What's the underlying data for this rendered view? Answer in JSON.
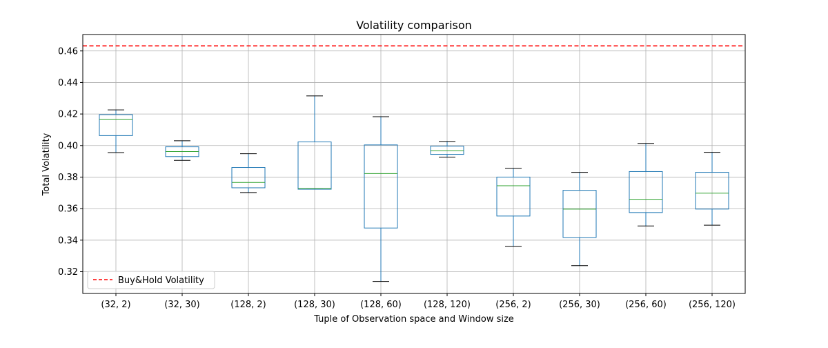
{
  "chart_data": {
    "type": "box",
    "title": "Volatility comparison",
    "xlabel": "Tuple of Observation space and Window size",
    "ylabel": "Total Volatility",
    "ylim": [
      0.3062,
      0.4704
    ],
    "yticks": [
      0.32,
      0.34,
      0.36,
      0.38,
      0.4,
      0.42,
      0.44,
      0.46
    ],
    "ytick_labels": [
      "0.32",
      "0.34",
      "0.36",
      "0.38",
      "0.40",
      "0.42",
      "0.44",
      "0.46"
    ],
    "grid": true,
    "categories": [
      "(32, 2)",
      "(32, 30)",
      "(128, 2)",
      "(128, 30)",
      "(128, 60)",
      "(128, 120)",
      "(256, 2)",
      "(256, 30)",
      "(256, 60)",
      "(256, 120)"
    ],
    "boxes": [
      {
        "whisker_low": 0.3955,
        "q1": 0.4063,
        "median": 0.4165,
        "q3": 0.4196,
        "whisker_high": 0.4226
      },
      {
        "whisker_low": 0.3906,
        "q1": 0.393,
        "median": 0.3962,
        "q3": 0.3992,
        "whisker_high": 0.403
      },
      {
        "whisker_low": 0.3702,
        "q1": 0.3732,
        "median": 0.3766,
        "q3": 0.3861,
        "whisker_high": 0.3948
      },
      {
        "whisker_low": 0.3723,
        "q1": 0.3723,
        "median": 0.3727,
        "q3": 0.4023,
        "whisker_high": 0.4315
      },
      {
        "whisker_low": 0.3138,
        "q1": 0.3477,
        "median": 0.3822,
        "q3": 0.4004,
        "whisker_high": 0.4183
      },
      {
        "whisker_low": 0.3926,
        "q1": 0.3944,
        "median": 0.3966,
        "q3": 0.3996,
        "whisker_high": 0.4026
      },
      {
        "whisker_low": 0.3361,
        "q1": 0.3553,
        "median": 0.3745,
        "q3": 0.38,
        "whisker_high": 0.3855
      },
      {
        "whisker_low": 0.3238,
        "q1": 0.3417,
        "median": 0.3597,
        "q3": 0.3716,
        "whisker_high": 0.383
      },
      {
        "whisker_low": 0.349,
        "q1": 0.3575,
        "median": 0.3659,
        "q3": 0.3835,
        "whisker_high": 0.4013
      },
      {
        "whisker_low": 0.3495,
        "q1": 0.3597,
        "median": 0.3698,
        "q3": 0.383,
        "whisker_high": 0.3957
      }
    ],
    "reference_line": {
      "name": "Buy&Hold Volatility",
      "value": 0.4632,
      "color": "#ff0000",
      "style": "dashed"
    },
    "legend": {
      "entries": [
        "Buy&Hold Volatility"
      ],
      "placement": "lower-left"
    },
    "colors": {
      "box": "#1f77b4",
      "median": "#2ca02c",
      "whisker_cap": "#000000",
      "grid": "#b0b0b0"
    }
  }
}
